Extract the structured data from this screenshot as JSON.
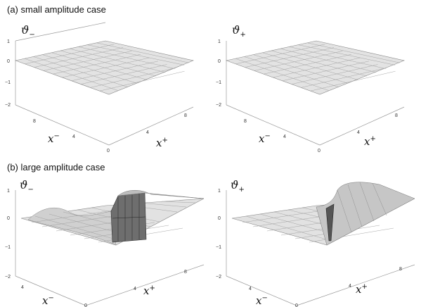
{
  "figure": {
    "panel_a": {
      "caption": "(a) small amplitude case",
      "plots": [
        {
          "zlabel": "ϑ",
          "zsub": "−",
          "xminus": "x",
          "xminus_sup": "−",
          "xplus": "x",
          "xplus_sup": "+",
          "zticks": [
            "1",
            "0",
            "−1",
            "−2"
          ],
          "xminus_ticks": [
            "8",
            "4"
          ],
          "xplus_ticks": [
            "0",
            "4",
            "8"
          ]
        },
        {
          "zlabel": "ϑ",
          "zsub": "+",
          "xminus": "x",
          "xminus_sup": "−",
          "xplus": "x",
          "xplus_sup": "+",
          "zticks": [
            "1",
            "0",
            "−1",
            "−2"
          ],
          "xminus_ticks": [
            "8",
            "4"
          ],
          "xplus_ticks": [
            "0",
            "4",
            "8"
          ]
        }
      ]
    },
    "panel_b": {
      "caption": "(b) large amplitude case",
      "plots": [
        {
          "zlabel": "ϑ",
          "zsub": "−",
          "xminus": "x",
          "xminus_sup": "−",
          "xplus": "x",
          "xplus_sup": "+",
          "zticks": [
            "1",
            "0",
            "−1",
            "−2"
          ],
          "xminus_ticks": [
            "4"
          ],
          "xplus_ticks": [
            "0",
            "4",
            "8"
          ]
        },
        {
          "zlabel": "ϑ",
          "zsub": "+",
          "xminus": "x",
          "xminus_sup": "−",
          "xplus": "x",
          "xplus_sup": "+",
          "zticks": [
            "1",
            "0",
            "−1",
            "−2"
          ],
          "xminus_ticks": [
            "4"
          ],
          "xplus_ticks": [
            "0",
            "4",
            "8"
          ]
        }
      ]
    }
  }
}
